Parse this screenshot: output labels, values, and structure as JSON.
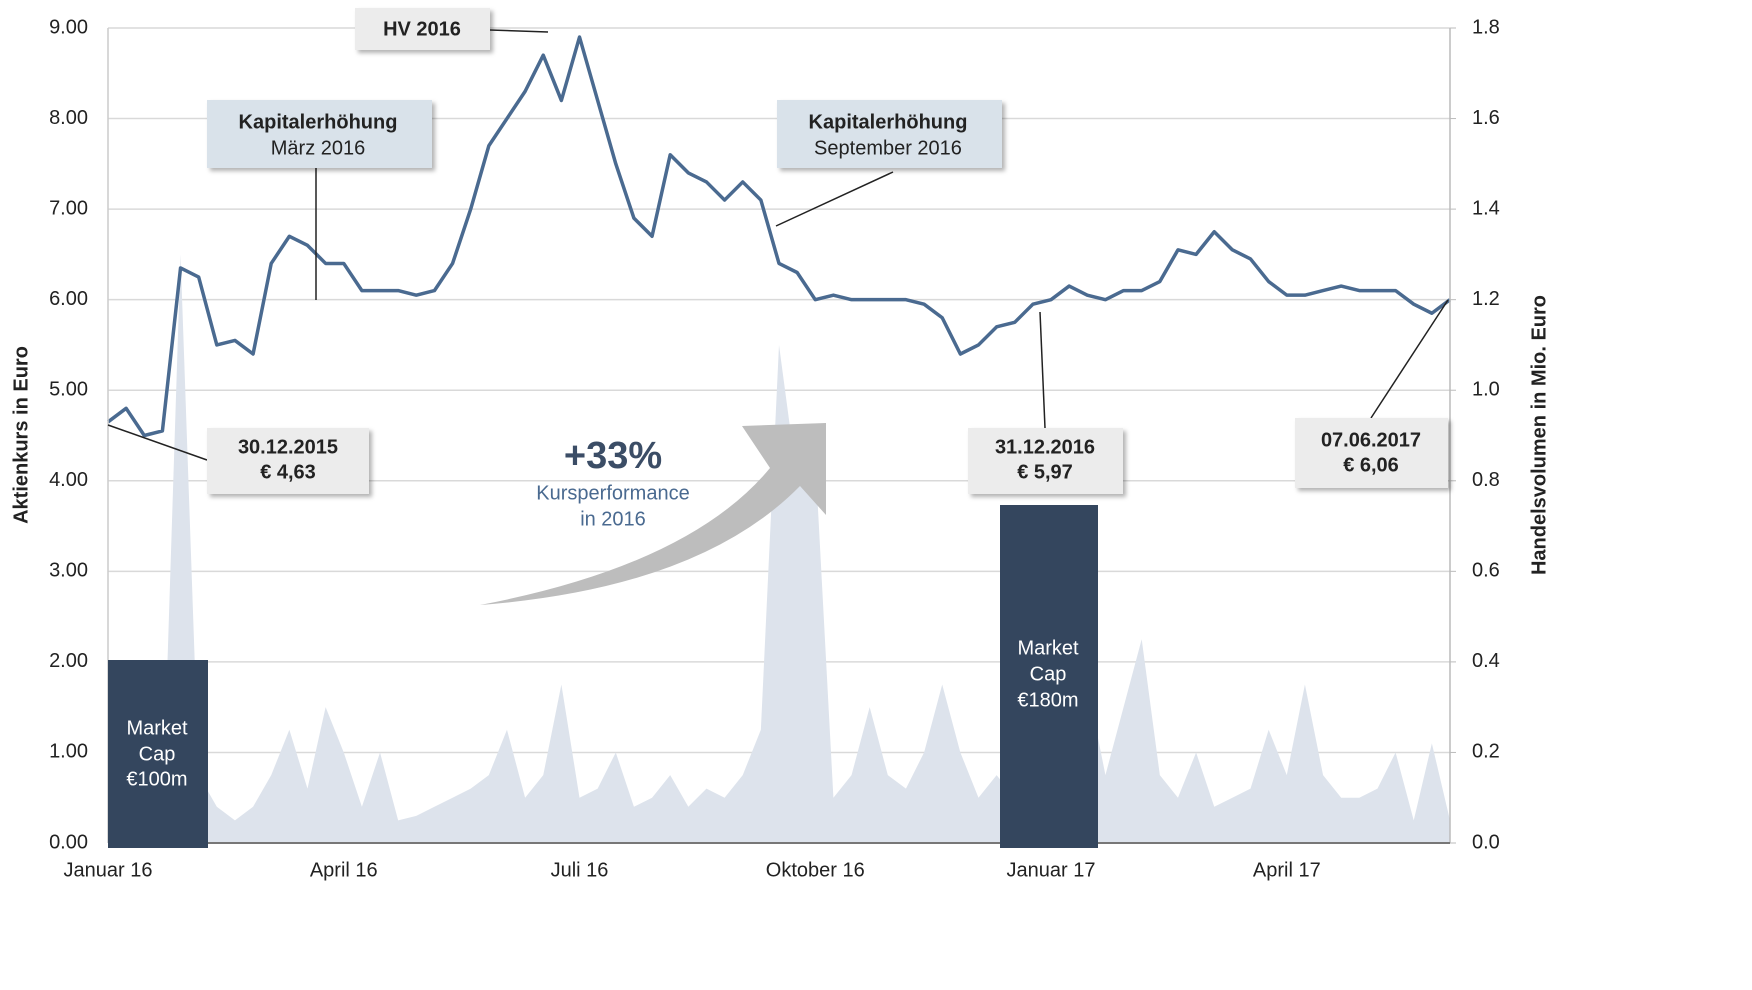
{
  "chart_data": {
    "type": "line",
    "y_label": "Aktienkurs in Euro",
    "y2_label": "Handelsvolumen in Mio. Euro",
    "categories": [
      "Januar 16",
      null,
      null,
      null,
      null,
      null,
      null,
      null,
      null,
      null,
      null,
      null,
      null,
      "April 16",
      null,
      null,
      null,
      null,
      null,
      null,
      null,
      null,
      null,
      null,
      null,
      null,
      "Juli 16",
      null,
      null,
      null,
      null,
      null,
      null,
      null,
      null,
      null,
      null,
      null,
      null,
      "Oktober 16",
      null,
      null,
      null,
      null,
      null,
      null,
      null,
      null,
      null,
      null,
      null,
      null,
      "Januar 17",
      null,
      null,
      null,
      null,
      null,
      null,
      null,
      null,
      null,
      null,
      null,
      null,
      "April 17",
      null,
      null,
      null,
      null,
      null,
      null,
      null,
      null,
      null
    ],
    "series": [
      {
        "name": "Aktienkurs",
        "color": "#4a6a90",
        "values": [
          4.65,
          4.8,
          4.5,
          4.55,
          6.35,
          6.25,
          5.5,
          5.55,
          5.4,
          6.4,
          6.7,
          6.6,
          6.4,
          6.4,
          6.1,
          6.1,
          6.1,
          6.05,
          6.1,
          6.4,
          7.0,
          7.7,
          8.0,
          8.3,
          8.7,
          8.2,
          8.9,
          8.2,
          7.5,
          6.9,
          6.7,
          7.6,
          7.4,
          7.3,
          7.1,
          7.3,
          7.1,
          6.4,
          6.3,
          6.0,
          6.05,
          6.0,
          6.0,
          6.0,
          6.0,
          5.95,
          5.8,
          5.4,
          5.5,
          5.7,
          5.75,
          5.95,
          6.0,
          6.15,
          6.05,
          6.0,
          6.1,
          6.1,
          6.2,
          6.55,
          6.5,
          6.75,
          6.55,
          6.45,
          6.2,
          6.05,
          6.05,
          6.1,
          6.15,
          6.1,
          6.1,
          6.1,
          5.95,
          5.85,
          6.0
        ]
      },
      {
        "name": "Handelsvolumen",
        "color": "#dde3ec",
        "axis": "y2",
        "values": [
          0.02,
          0.03,
          0.02,
          0.05,
          1.3,
          0.15,
          0.08,
          0.05,
          0.08,
          0.15,
          0.25,
          0.12,
          0.3,
          0.2,
          0.08,
          0.2,
          0.05,
          0.06,
          0.08,
          0.1,
          0.12,
          0.15,
          0.25,
          0.1,
          0.15,
          0.35,
          0.1,
          0.12,
          0.2,
          0.08,
          0.1,
          0.15,
          0.08,
          0.12,
          0.1,
          0.15,
          0.25,
          1.1,
          0.8,
          0.85,
          0.1,
          0.15,
          0.3,
          0.15,
          0.12,
          0.2,
          0.35,
          0.2,
          0.1,
          0.15,
          0.1,
          0.25,
          0.3,
          0.2,
          0.35,
          0.15,
          0.3,
          0.45,
          0.15,
          0.1,
          0.2,
          0.08,
          0.1,
          0.12,
          0.25,
          0.15,
          0.35,
          0.15,
          0.1,
          0.1,
          0.12,
          0.2,
          0.05,
          0.22,
          0.05
        ]
      }
    ],
    "ylim": [
      0,
      9
    ],
    "yticks": [
      {
        "value": 0,
        "label": "0.00"
      },
      {
        "value": 1,
        "label": "1.00"
      },
      {
        "value": 2,
        "label": "2.00"
      },
      {
        "value": 3,
        "label": "3.00"
      },
      {
        "value": 4,
        "label": "4.00"
      },
      {
        "value": 5,
        "label": "5.00"
      },
      {
        "value": 6,
        "label": "6.00"
      },
      {
        "value": 7,
        "label": "7.00"
      },
      {
        "value": 8,
        "label": "8.00"
      },
      {
        "value": 9,
        "label": "9.00"
      }
    ],
    "y2lim": [
      0,
      1.8
    ],
    "y2ticks": [
      {
        "value": 0,
        "label": "0.0"
      },
      0.2,
      0.4,
      0.6,
      0.8,
      {
        "value": 1,
        "label": "1.0"
      },
      1.2,
      1.4,
      1.6,
      1.8
    ],
    "grid": true,
    "annotations": [
      {
        "lines": [
          "HV 2016"
        ]
      },
      {
        "lines": [
          "Kapitalerhöhung",
          "März 2016"
        ]
      },
      {
        "lines": [
          "Kapitalerhöhung",
          "September 2016"
        ]
      },
      {
        "lines": [
          "30.12.2015",
          "€ 4,63"
        ]
      },
      {
        "lines": [
          "31.12.2016",
          "€ 5,97"
        ]
      },
      {
        "lines": [
          "07.06.2017",
          "€ 6,06"
        ]
      }
    ],
    "performance": {
      "value_label": "+33%",
      "lines": [
        "Kursperformance",
        "in 2016"
      ]
    },
    "market_caps": [
      [
        "Market",
        "Cap",
        "€100m"
      ],
      [
        "Market",
        "Cap",
        "€180m"
      ]
    ]
  }
}
